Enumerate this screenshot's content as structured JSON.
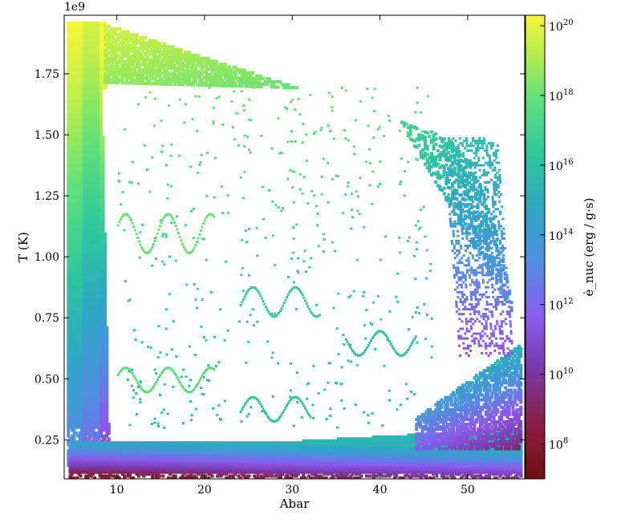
{
  "chart_data": {
    "type": "heatmap",
    "title": "",
    "xlabel": "Abar",
    "ylabel": "T  (K)",
    "xlim": [
      4,
      56.5
    ],
    "ylim": [
      90000000.0,
      1990000000.0
    ],
    "y_offset_label": "1e9",
    "x_ticks": [
      10,
      20,
      30,
      40,
      50
    ],
    "x_tick_labels": [
      "10",
      "20",
      "30",
      "40",
      "50"
    ],
    "y_ticks": [
      0.25,
      0.5,
      0.75,
      1.0,
      1.25,
      1.5,
      1.75
    ],
    "y_tick_labels": [
      "0.25",
      "0.50",
      "0.75",
      "1.00",
      "1.25",
      "1.50",
      "1.75"
    ],
    "colorbar": {
      "label": "ė_nuc (erg / g·s)",
      "scale": "log",
      "range": [
        10000000.0,
        2e+20
      ],
      "tick_exponents": [
        8,
        10,
        12,
        14,
        16,
        18,
        20
      ],
      "tick_base": "10",
      "colormap": [
        "#6b1010",
        "#8b1a3a",
        "#7a3bb0",
        "#8a5cf0",
        "#4f8fe0",
        "#2ea7c4",
        "#2ec79e",
        "#5fe07a",
        "#b8ef4a",
        "#f6f63a"
      ]
    },
    "regions": [
      {
        "name": "left-band",
        "x": [
          4.5,
          9.2
        ],
        "y": [
          0.13,
          1.97
        ],
        "log_e_low": 12,
        "log_e_high": 20
      },
      {
        "name": "upper-cap",
        "x": [
          8.5,
          55
        ],
        "y": [
          1.1,
          1.97
        ],
        "log_e_low": 14,
        "log_e_high": 19.5
      },
      {
        "name": "bottom-band",
        "x": [
          4.5,
          56
        ],
        "y": [
          0.1,
          0.28
        ],
        "log_e_low": 7,
        "log_e_high": 15
      },
      {
        "name": "right-edge",
        "x": [
          44,
          56
        ],
        "y": [
          0.22,
          0.65
        ],
        "log_e_low": 9,
        "log_e_high": 15.5
      },
      {
        "name": "interior-tracks",
        "x": [
          10,
          44
        ],
        "y": [
          0.3,
          1.7
        ],
        "log_e_low": 15,
        "log_e_high": 18
      }
    ]
  }
}
